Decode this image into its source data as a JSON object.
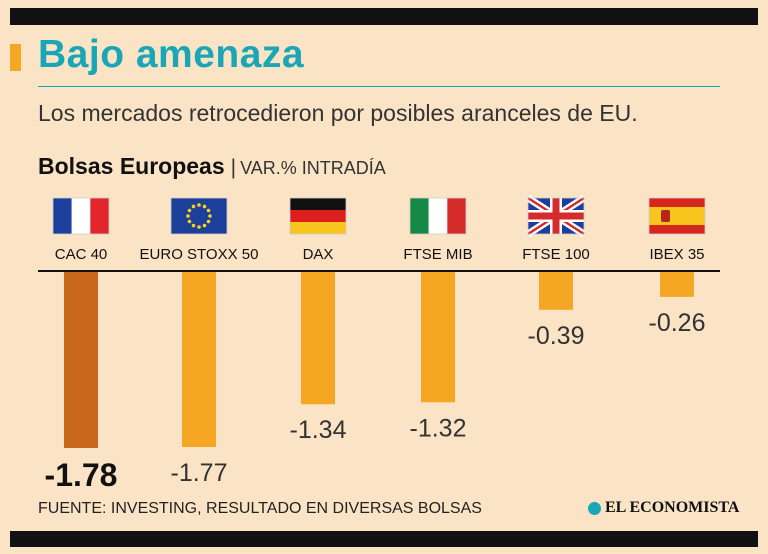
{
  "header": {
    "title": "Bajo amenaza",
    "subtitle": "Los mercados retrocedieron por posibles aranceles de EU."
  },
  "section": {
    "title": "Bolsas Europeas",
    "separator": "|",
    "subtitle": "VAR.% INTRADÍA"
  },
  "chart_data": {
    "type": "bar",
    "title": "Bolsas Europeas",
    "ylabel": "VAR.% INTRADÍA",
    "xlabel": "",
    "categories": [
      "CAC 40",
      "EURO STOXX 50",
      "DAX",
      "FTSE MIB",
      "FTSE 100",
      "IBEX 35"
    ],
    "values": [
      -1.78,
      -1.77,
      -1.34,
      -1.32,
      -0.39,
      -0.26
    ],
    "value_labels": [
      "-1.78",
      "-1.77",
      "-1.34",
      "-1.32",
      "-0.39",
      "-0.26"
    ],
    "flags": [
      "france-flag-icon",
      "eu-flag-icon",
      "germany-flag-icon",
      "italy-flag-icon",
      "uk-flag-icon",
      "spain-flag-icon"
    ],
    "highlight_index": 0,
    "ylim": [
      -1.78,
      0
    ],
    "colors": {
      "highlight": "#c8671c",
      "bar": "#f5a623",
      "axis": "#111111",
      "label": "#333333"
    }
  },
  "footer": {
    "source": "FUENTE: INVESTING, RESULTADO EN DIVERSAS BOLSAS",
    "brand": "EL ECONOMISTA"
  }
}
